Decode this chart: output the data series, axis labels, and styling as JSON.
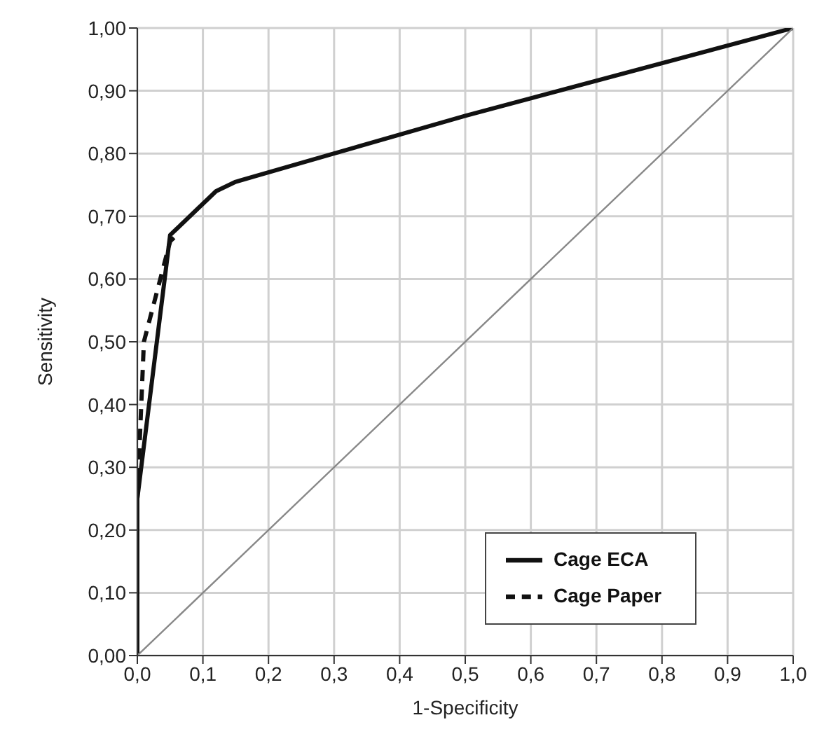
{
  "chart_data": {
    "type": "line",
    "xlabel": "1-Specificity",
    "ylabel": "Sensitivity",
    "xlim": [
      0,
      1
    ],
    "ylim": [
      0,
      1
    ],
    "xticks": [
      {
        "value": 0,
        "label": "0,0"
      },
      {
        "value": 0.1,
        "label": "0,1"
      },
      {
        "value": 0.2,
        "label": "0,2"
      },
      {
        "value": 0.3,
        "label": "0,3"
      },
      {
        "value": 0.4,
        "label": "0,4"
      },
      {
        "value": 0.5,
        "label": "0,5"
      },
      {
        "value": 0.6,
        "label": "0,6"
      },
      {
        "value": 0.7,
        "label": "0,7"
      },
      {
        "value": 0.8,
        "label": "0,8"
      },
      {
        "value": 0.9,
        "label": "0,9"
      },
      {
        "value": 1,
        "label": "1,0"
      }
    ],
    "yticks": [
      {
        "value": 0,
        "label": "0,00"
      },
      {
        "value": 0.1,
        "label": "0,10"
      },
      {
        "value": 0.2,
        "label": "0,20"
      },
      {
        "value": 0.3,
        "label": "0,30"
      },
      {
        "value": 0.4,
        "label": "0,40"
      },
      {
        "value": 0.5,
        "label": "0,50"
      },
      {
        "value": 0.6,
        "label": "0,60"
      },
      {
        "value": 0.7,
        "label": "0,70"
      },
      {
        "value": 0.8,
        "label": "0,80"
      },
      {
        "value": 0.9,
        "label": "0,90"
      },
      {
        "value": 1,
        "label": "1,00"
      }
    ],
    "grid": true,
    "legend": "bottom right",
    "marker": "none",
    "series": [
      {
        "name": "Cage ECA",
        "color": "#111111",
        "line_style": "solid",
        "x": [
          0,
          0,
          0.05,
          0.06,
          0.12,
          0.15,
          0.3,
          0.5,
          1
        ],
        "values": [
          0,
          0.25,
          0.67,
          0.68,
          0.74,
          0.755,
          0.8,
          0.86,
          1
        ]
      },
      {
        "name": "Cage Paper",
        "color": "#111111",
        "line_style": "dashed",
        "x": [
          0,
          0,
          0.01,
          0.03,
          0.05,
          0.06
        ],
        "values": [
          0,
          0.25,
          0.5,
          0.58,
          0.66,
          0.67
        ]
      },
      {
        "color": "#888888",
        "line_style": "solid",
        "x": [
          0,
          1
        ],
        "values": [
          0,
          1
        ]
      }
    ]
  }
}
